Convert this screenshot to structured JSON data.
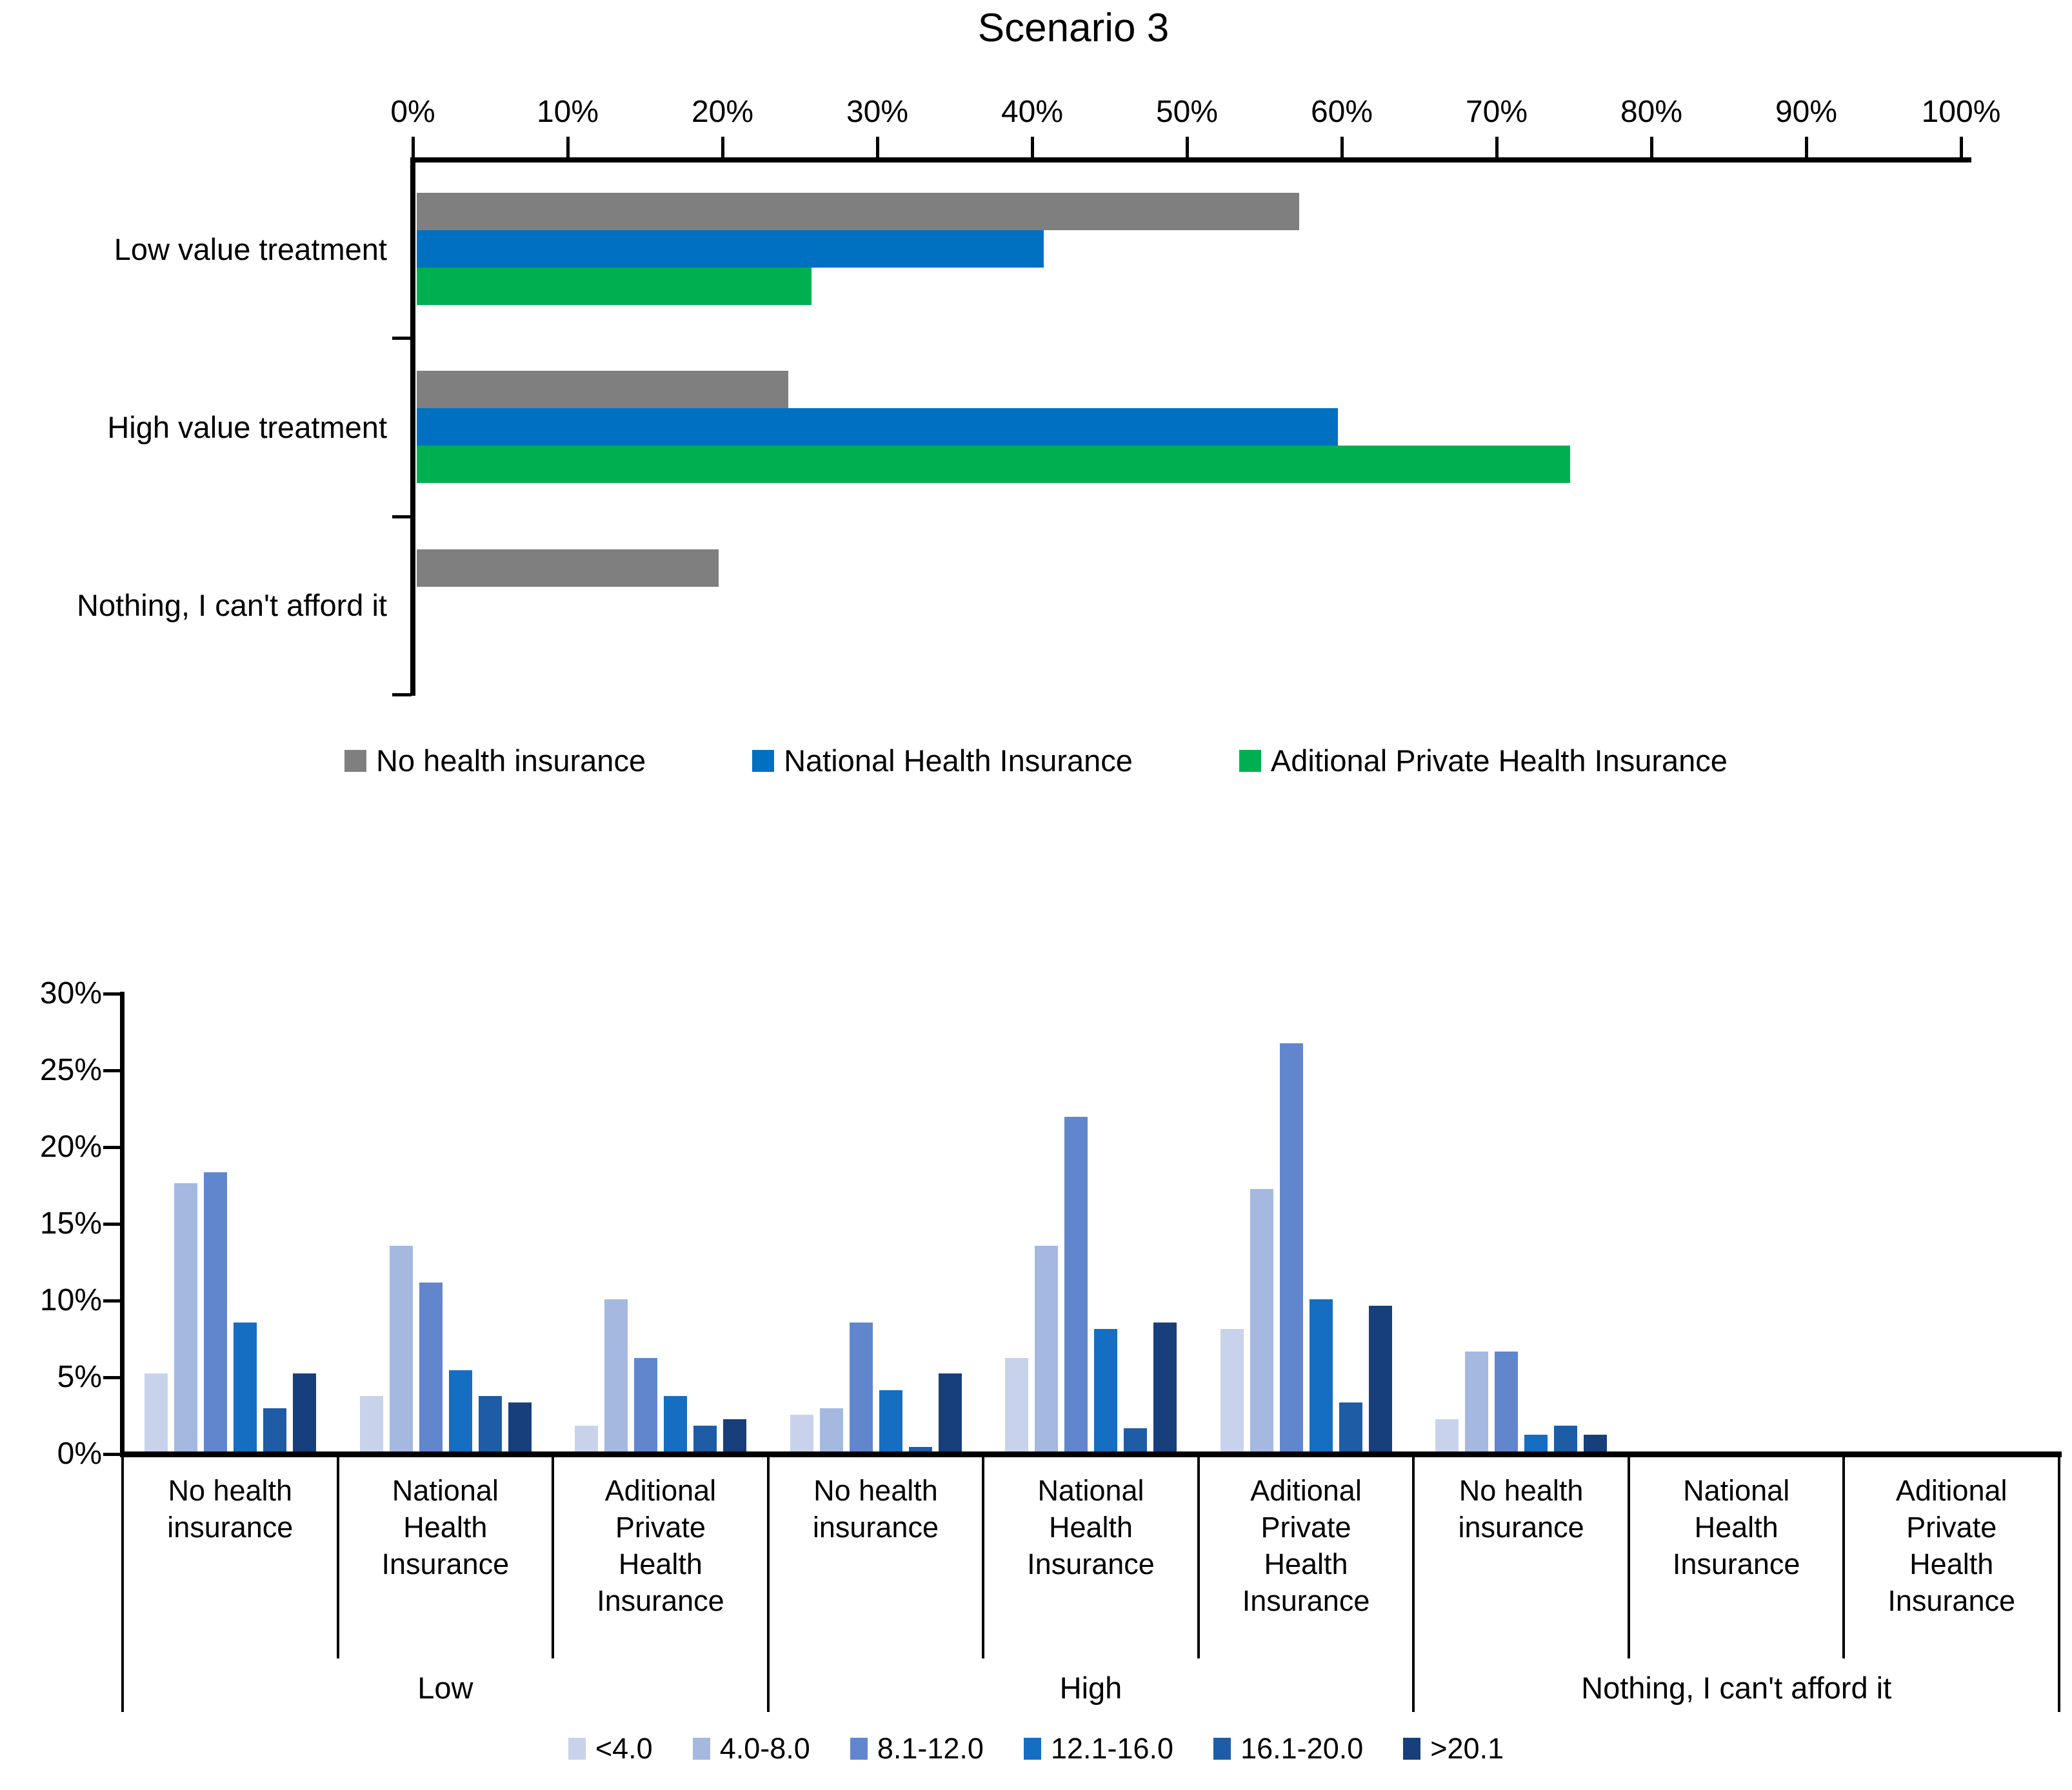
{
  "chart_data": [
    {
      "type": "bar",
      "orientation": "horizontal",
      "title": "Scenario 3",
      "xlabel": "",
      "ylabel": "",
      "x_axis": {
        "min": 0,
        "max": 100,
        "tick_labels": [
          "0%",
          "10%",
          "20%",
          "30%",
          "40%",
          "50%",
          "60%",
          "70%",
          "80%",
          "90%",
          "100%"
        ]
      },
      "grid": false,
      "legend_position": "bottom",
      "categories": [
        "Low value treatment",
        "High value treatment",
        "Nothing, I can't afford it"
      ],
      "series": [
        {
          "name": "No health insurance",
          "color": "#7f7f7f",
          "values": [
            57,
            24,
            19.5
          ]
        },
        {
          "name": "National Health Insurance",
          "color": "#0070c0",
          "values": [
            40.5,
            59.5,
            0
          ]
        },
        {
          "name": "Aditional Private Health Insurance",
          "color": "#00b050",
          "values": [
            25.5,
            74.5,
            0
          ]
        }
      ]
    },
    {
      "type": "bar",
      "orientation": "vertical",
      "title": "",
      "xlabel": "",
      "ylabel": "",
      "y_axis": {
        "min": 0,
        "max": 30,
        "tick_labels": [
          "0%",
          "5%",
          "10%",
          "15%",
          "20%",
          "25%",
          "30%"
        ]
      },
      "grid": false,
      "legend_position": "bottom",
      "group_labels": [
        "Low",
        "High",
        "Nothing, I can't afford it"
      ],
      "categories": [
        {
          "lines": [
            "No health",
            "insurance"
          ]
        },
        {
          "lines": [
            "National",
            "Health",
            "Insurance"
          ]
        },
        {
          "lines": [
            "Aditional",
            "Private",
            "Health",
            "Insurance"
          ]
        },
        {
          "lines": [
            "No health",
            "insurance"
          ]
        },
        {
          "lines": [
            "National",
            "Health",
            "Insurance"
          ]
        },
        {
          "lines": [
            "Aditional",
            "Private",
            "Health",
            "Insurance"
          ]
        },
        {
          "lines": [
            "No health",
            "insurance"
          ]
        },
        {
          "lines": [
            "National",
            "Health",
            "Insurance"
          ]
        },
        {
          "lines": [
            "Aditional",
            "Private",
            "Health",
            "Insurance"
          ]
        }
      ],
      "series": [
        {
          "name": "<4.0",
          "color": "#c8d3eb",
          "values": [
            5.1,
            3.6,
            1.7,
            2.4,
            6.1,
            8.0,
            2.1,
            0,
            0
          ]
        },
        {
          "name": "4.0-8.0",
          "color": "#a5b8e0",
          "values": [
            17.5,
            13.4,
            9.9,
            2.8,
            13.4,
            17.1,
            6.5,
            0,
            0
          ]
        },
        {
          "name": "8.1-12.0",
          "color": "#6286cd",
          "values": [
            18.2,
            11.0,
            6.1,
            8.4,
            21.8,
            26.6,
            6.5,
            0,
            0
          ]
        },
        {
          "name": "12.1-16.0",
          "color": "#156ec2",
          "values": [
            8.4,
            5.3,
            3.6,
            4.0,
            8.0,
            9.9,
            1.1,
            0,
            0
          ]
        },
        {
          "name": "16.1-20.0",
          "color": "#1e5ca6",
          "values": [
            2.8,
            3.6,
            1.7,
            0.3,
            1.5,
            3.2,
            1.7,
            0,
            0
          ]
        },
        {
          "name": ">20.1",
          "color": "#173f7c",
          "values": [
            5.1,
            3.2,
            2.1,
            5.1,
            8.4,
            9.5,
            1.1,
            0,
            0
          ]
        }
      ]
    }
  ]
}
